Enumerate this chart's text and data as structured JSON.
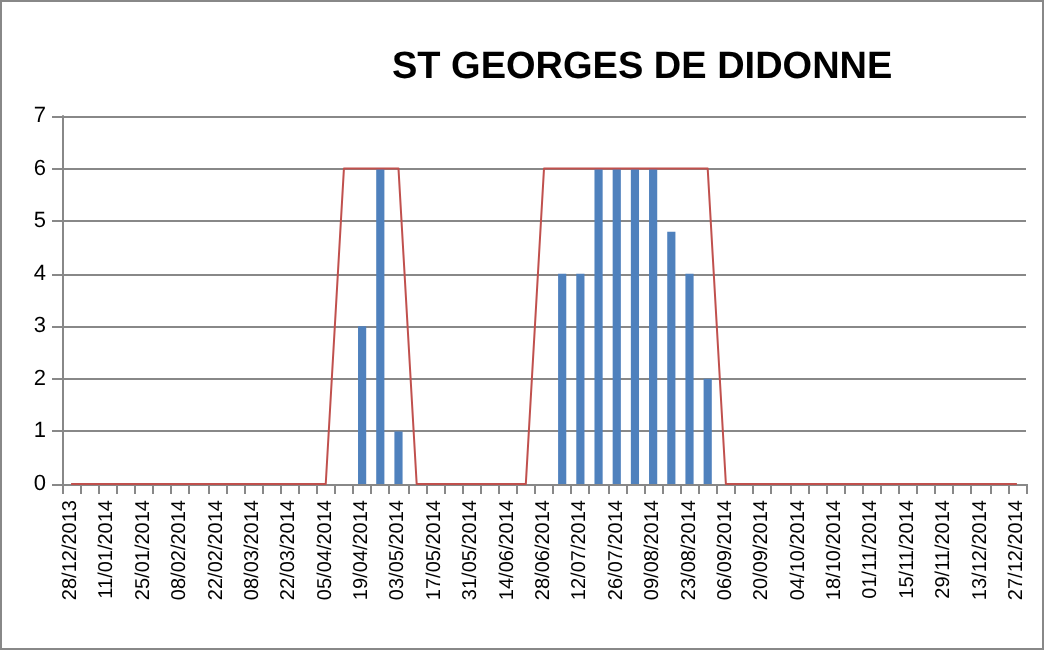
{
  "chart_data": {
    "type": "bar",
    "title": "ST GEORGES DE DIDONNE",
    "categories": [
      "28/12/2013",
      null,
      "11/01/2014",
      null,
      "25/01/2014",
      null,
      "08/02/2014",
      null,
      "22/02/2014",
      null,
      "08/03/2014",
      null,
      "22/03/2014",
      null,
      "05/04/2014",
      null,
      "19/04/2014",
      null,
      "03/05/2014",
      null,
      "17/05/2014",
      null,
      "31/05/2014",
      null,
      "14/06/2014",
      null,
      "28/06/2014",
      null,
      "12/07/2014",
      null,
      "26/07/2014",
      null,
      "09/08/2014",
      null,
      "23/08/2014",
      null,
      "06/09/2014",
      null,
      "20/09/2014",
      null,
      "04/10/2014",
      null,
      "18/10/2014",
      null,
      "01/11/2014",
      null,
      "15/11/2014",
      null,
      "29/11/2014",
      null,
      "13/12/2014",
      null,
      "27/12/2014"
    ],
    "series": [
      {
        "color": "#4f81bd",
        "values": [
          0,
          0,
          0,
          0,
          0,
          0,
          0,
          0,
          0,
          0,
          0,
          0,
          0,
          0,
          0,
          0,
          3,
          6,
          1,
          0,
          0,
          0,
          0,
          0,
          0,
          0,
          0,
          4,
          4,
          6,
          6,
          6,
          6,
          4.8,
          4,
          2,
          0,
          0,
          0,
          0,
          0,
          0,
          0,
          0,
          0,
          0,
          0,
          0,
          0,
          0,
          0,
          0,
          0
        ]
      },
      {
        "type": "line",
        "color": "#c0504d",
        "values": [
          0,
          0,
          0,
          0,
          0,
          0,
          0,
          0,
          0,
          0,
          0,
          0,
          0,
          0,
          0,
          6,
          6,
          6,
          6,
          0,
          0,
          0,
          0,
          0,
          0,
          0,
          6,
          6,
          6,
          6,
          6,
          6,
          6,
          6,
          6,
          6,
          0,
          0,
          0,
          0,
          0,
          0,
          0,
          0,
          0,
          0,
          0,
          0,
          0,
          0,
          0,
          0,
          0
        ]
      }
    ],
    "ylim": [
      0,
      7
    ],
    "yticks": [
      0,
      1,
      2,
      3,
      4,
      5,
      6,
      7
    ],
    "grid": "y",
    "marker": "none"
  }
}
